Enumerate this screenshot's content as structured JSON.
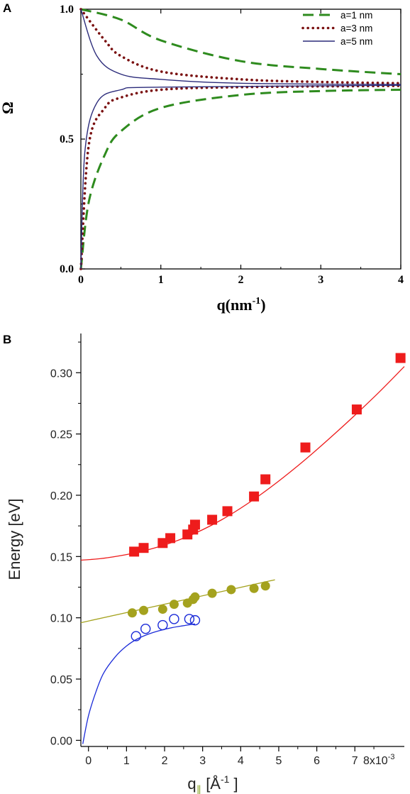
{
  "panels": {
    "a": "A",
    "b": "B"
  },
  "chart_data": [
    {
      "type": "line",
      "panel": "A",
      "xlabel_base": "q(nm",
      "xlabel_sup": "-1",
      "xlabel_end": ")",
      "ylabel": "Ω",
      "xlim": [
        0,
        4
      ],
      "ylim": [
        0,
        1
      ],
      "x_ticks": [
        "0",
        "1",
        "2",
        "3",
        "4"
      ],
      "y_ticks": [
        "0.0",
        "0.5",
        "1.0"
      ],
      "legend_position": "top-right",
      "series": [
        {
          "name": "a=1 nm",
          "a": 1,
          "style": "dashed",
          "color": "#2e8b1e",
          "upper": {
            "x": [
              0,
              0.5,
              1,
              2,
              3,
              4
            ],
            "y": [
              1.0,
              0.96,
              0.88,
              0.8,
              0.77,
              0.75
            ]
          },
          "lower": {
            "x": [
              0,
              0.1,
              0.3,
              0.5,
              1,
              2,
              3,
              4
            ],
            "y": [
              0.0,
              0.26,
              0.44,
              0.53,
              0.62,
              0.67,
              0.685,
              0.69
            ]
          }
        },
        {
          "name": "a=3 nm",
          "a": 3,
          "style": "dotted",
          "color": "#7a1010",
          "upper": {
            "x": [
              0,
              0.3,
              0.5,
              1,
              2,
              3,
              4
            ],
            "y": [
              1.0,
              0.88,
              0.82,
              0.76,
              0.73,
              0.72,
              0.715
            ]
          },
          "lower": {
            "x": [
              0,
              0.1,
              0.3,
              0.5,
              1,
              2,
              4
            ],
            "y": [
              0.0,
              0.48,
              0.62,
              0.66,
              0.69,
              0.7,
              0.705
            ]
          }
        },
        {
          "name": "a=5 nm",
          "a": 5,
          "style": "solid",
          "color": "#2b2b7a",
          "upper": {
            "x": [
              0,
              0.2,
              0.5,
              1,
              2,
              4
            ],
            "y": [
              1.0,
              0.82,
              0.75,
              0.73,
              0.715,
              0.71
            ]
          },
          "lower": {
            "x": [
              0,
              0.05,
              0.2,
              0.5,
              1,
              4
            ],
            "y": [
              0.0,
              0.45,
              0.64,
              0.69,
              0.7,
              0.707
            ]
          }
        }
      ]
    },
    {
      "type": "scatter",
      "panel": "B",
      "xlabel_base": "q",
      "xlabel_sub": "∥",
      "xlabel_unit": " [Å",
      "xlabel_sup": "-1",
      "xlabel_end": " ]",
      "ylabel": "Energy [eV]",
      "x_multiplier": "8x10",
      "x_multiplier_exp": "-3",
      "xlim": [
        -0.2,
        8.3
      ],
      "ylim": [
        -0.005,
        0.332
      ],
      "x_ticks": [
        0,
        1,
        2,
        3,
        4,
        5,
        6,
        7
      ],
      "y_ticks": [
        "0.00",
        "0.05",
        "0.10",
        "0.15",
        "0.20",
        "0.25",
        "0.30"
      ],
      "series": [
        {
          "marker": "square",
          "color": "#ee1c1c",
          "x": [
            1.2,
            1.45,
            1.95,
            2.15,
            2.6,
            2.75,
            2.8,
            3.25,
            3.65,
            4.35,
            4.65,
            5.7,
            7.05,
            8.2
          ],
          "y": [
            0.154,
            0.157,
            0.161,
            0.165,
            0.168,
            0.172,
            0.176,
            0.18,
            0.187,
            0.199,
            0.213,
            0.239,
            0.27,
            0.312
          ],
          "fit": {
            "x": [
              -0.2,
              0.5,
              1.5,
              2.5,
              3.5,
              4.5,
              5.5,
              6.5,
              7.5,
              8.3
            ],
            "y": [
              0.147,
              0.149,
              0.155,
              0.165,
              0.18,
              0.2,
              0.224,
              0.251,
              0.28,
              0.305
            ]
          }
        },
        {
          "marker": "circle-filled",
          "color": "#a4a21e",
          "x": [
            1.15,
            1.45,
            1.95,
            2.25,
            2.6,
            2.75,
            2.8,
            3.25,
            3.75,
            4.35,
            4.65
          ],
          "y": [
            0.104,
            0.106,
            0.107,
            0.111,
            0.112,
            0.115,
            0.117,
            0.12,
            0.123,
            0.124,
            0.126
          ],
          "fit": {
            "x": [
              -0.2,
              4.9
            ],
            "y": [
              0.096,
              0.131
            ]
          }
        },
        {
          "marker": "circle-open",
          "color": "#1a2ad8",
          "x": [
            1.25,
            1.5,
            1.95,
            2.25,
            2.65,
            2.8
          ],
          "y": [
            0.085,
            0.091,
            0.094,
            0.099,
            0.099,
            0.098
          ],
          "fit": {
            "x": [
              -0.15,
              0.0,
              0.2,
              0.4,
              0.7,
              1.0,
              1.3,
              1.7,
              2.2,
              2.8
            ],
            "y": [
              -0.003,
              0.02,
              0.04,
              0.055,
              0.068,
              0.077,
              0.083,
              0.088,
              0.092,
              0.095
            ]
          }
        }
      ]
    }
  ]
}
